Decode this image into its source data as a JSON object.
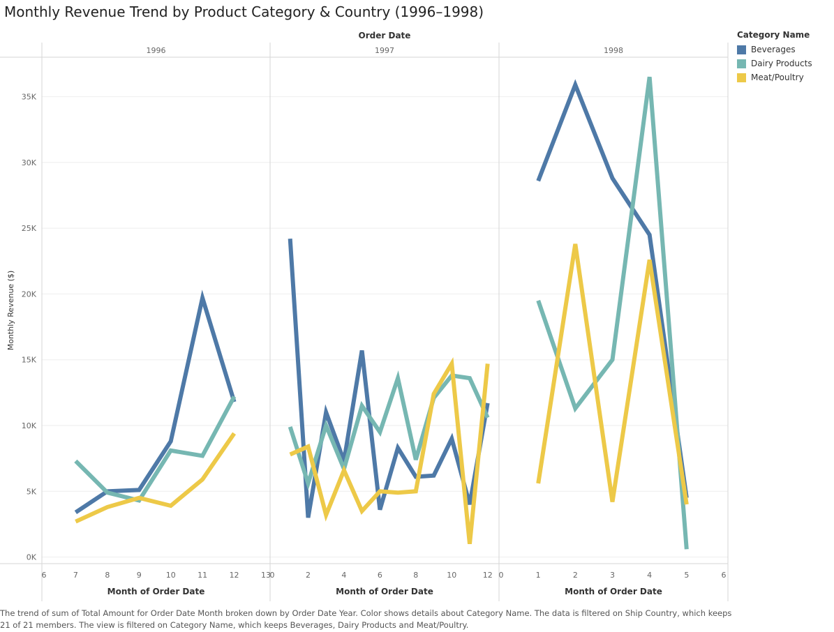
{
  "title": "Monthly Revenue Trend by Product Category & Country (1996–1998)",
  "caption": "The trend of sum of Total Amount for Order Date Month broken down by Order Date Year.  Color shows details about Category Name. The data is filtered on Ship Country, which keeps 21 of 21 members. The view is filtered on Category Name, which keeps Beverages, Dairy Products and Meat/Poultry.",
  "legend": {
    "title": "Category Name",
    "items": [
      {
        "label": "Beverages",
        "color": "#4e79a7"
      },
      {
        "label": "Dairy Products",
        "color": "#76b7b2"
      },
      {
        "label": "Meat/Poultry",
        "color": "#edc948"
      }
    ]
  },
  "chart_data": {
    "type": "line",
    "column_header": "Order Date",
    "ylabel": "Monthly Revenue ($)",
    "xlabel": "Month of Order Date",
    "ylim": [
      -500,
      38000
    ],
    "yticks": [
      0,
      5000,
      10000,
      15000,
      20000,
      25000,
      30000,
      35000
    ],
    "ytick_labels": [
      "0K",
      "5K",
      "10K",
      "15K",
      "20K",
      "25K",
      "30K",
      "35K"
    ],
    "grid": true,
    "legend_position": "right",
    "panels": [
      {
        "year": "1996",
        "xlim": [
          6,
          13
        ],
        "xticks": [
          6,
          7,
          8,
          9,
          10,
          11,
          12,
          13
        ],
        "series": [
          {
            "name": "Beverages",
            "x": [
              7,
              8,
              9,
              10,
              11,
              12
            ],
            "y": [
              3400,
              5000,
              5100,
              8800,
              19700,
              11800
            ]
          },
          {
            "name": "Dairy Products",
            "x": [
              7,
              8,
              9,
              10,
              11,
              12
            ],
            "y": [
              7300,
              4900,
              4300,
              8100,
              7700,
              12200
            ]
          },
          {
            "name": "Meat/Poultry",
            "x": [
              7,
              8,
              9,
              10,
              11,
              12
            ],
            "y": [
              2700,
              3800,
              4500,
              3900,
              5900,
              9400
            ]
          }
        ]
      },
      {
        "year": "1997",
        "xlim": [
          0,
          12.4
        ],
        "xticks": [
          0,
          2,
          4,
          6,
          8,
          10,
          12
        ],
        "series": [
          {
            "name": "Beverages",
            "x": [
              1,
              2,
              3,
              4,
              5,
              6,
              7,
              8,
              9,
              10,
              11,
              12
            ],
            "y": [
              24200,
              3000,
              11000,
              7300,
              15700,
              3600,
              8300,
              6100,
              6200,
              9000,
              4000,
              11700
            ]
          },
          {
            "name": "Dairy Products",
            "x": [
              1,
              2,
              3,
              4,
              5,
              6,
              7,
              8,
              9,
              10,
              11,
              12
            ],
            "y": [
              9900,
              5600,
              10000,
              6700,
              11500,
              9500,
              13600,
              7400,
              12100,
              13800,
              13600,
              10600
            ]
          },
          {
            "name": "Meat/Poultry",
            "x": [
              1,
              2,
              3,
              4,
              5,
              6,
              7,
              8,
              9,
              10,
              11,
              12
            ],
            "y": [
              7800,
              8400,
              3200,
              6600,
              3500,
              5000,
              4900,
              5000,
              12400,
              14700,
              1000,
              14700
            ]
          }
        ]
      },
      {
        "year": "1998",
        "xlim": [
          0,
          6
        ],
        "xticks": [
          0,
          1,
          2,
          3,
          4,
          5,
          6
        ],
        "series": [
          {
            "name": "Beverages",
            "x": [
              1,
              2,
              3,
              4,
              5
            ],
            "y": [
              28600,
              35900,
              28800,
              24500,
              4500
            ]
          },
          {
            "name": "Dairy Products",
            "x": [
              1,
              2,
              3,
              4,
              5
            ],
            "y": [
              19500,
              11300,
              15000,
              36500,
              600
            ]
          },
          {
            "name": "Meat/Poultry",
            "x": [
              1,
              2,
              3,
              4,
              5
            ],
            "y": [
              5600,
              23800,
              4200,
              22600,
              4000
            ]
          }
        ]
      }
    ]
  }
}
